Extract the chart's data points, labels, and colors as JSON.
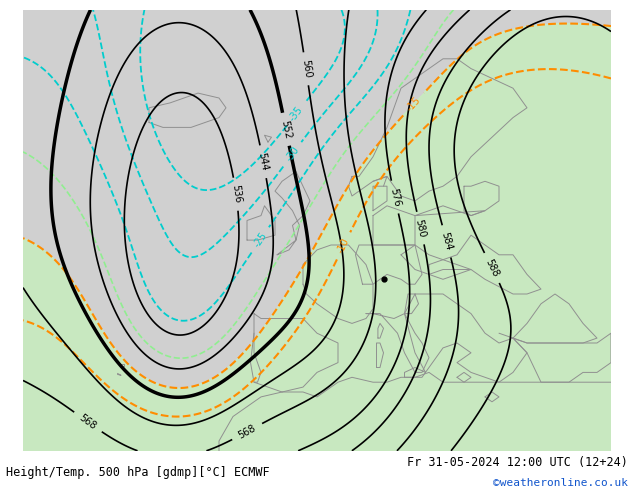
{
  "title_left": "Height/Temp. 500 hPa [gdmp][°C] ECMWF",
  "title_right": "Fr 31-05-2024 12:00 UTC (12+24)",
  "credit": "©weatheronline.co.uk",
  "figsize": [
    6.34,
    4.9
  ],
  "dpi": 100
}
